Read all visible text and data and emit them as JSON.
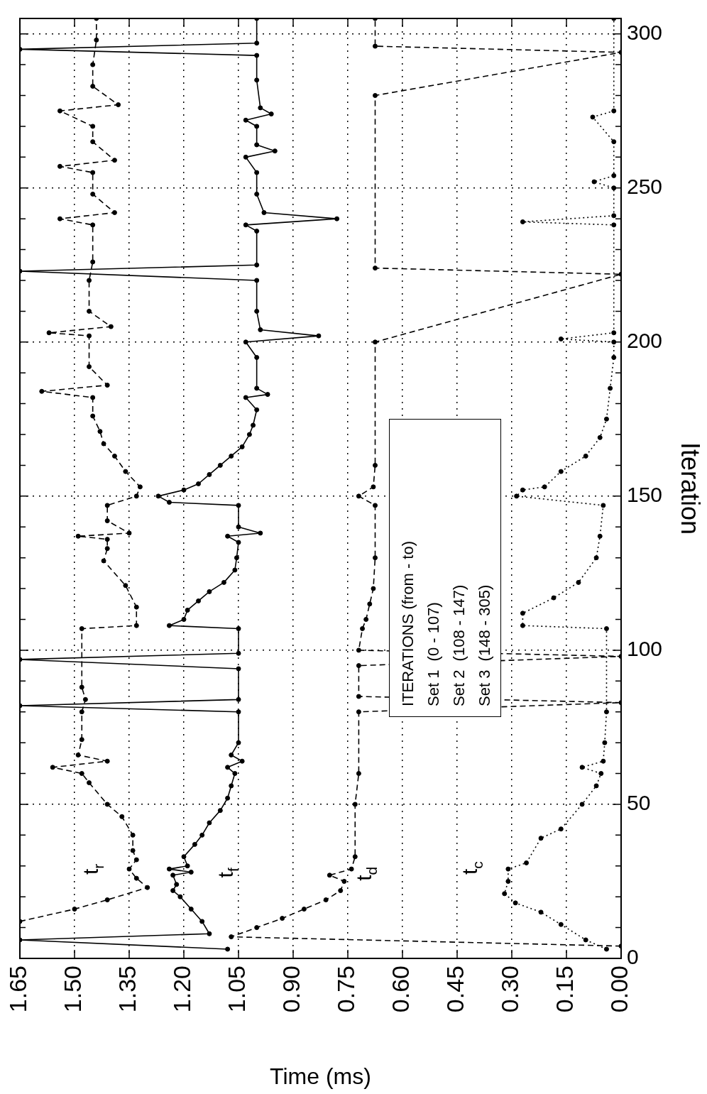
{
  "chart_data": {
    "type": "line",
    "xlabel": "Time (ms)",
    "ylabel": "Iteration",
    "ylim": [
      0,
      305
    ],
    "xlim": [
      1.65,
      0
    ],
    "yticks": [
      0,
      {
        "value": 10,
        "label": null
      },
      {
        "value": 20,
        "label": null
      },
      {
        "value": 30,
        "label": null
      },
      {
        "value": 40,
        "label": null
      },
      50,
      {
        "value": 60,
        "label": null
      },
      {
        "value": 70,
        "label": null
      },
      {
        "value": 80,
        "label": null
      },
      {
        "value": 90,
        "label": null
      },
      100,
      {
        "value": 110,
        "label": null
      },
      {
        "value": 120,
        "label": null
      },
      {
        "value": 130,
        "label": null
      },
      {
        "value": 140,
        "label": null
      },
      150,
      {
        "value": 160,
        "label": null
      },
      {
        "value": 170,
        "label": null
      },
      {
        "value": 180,
        "label": null
      },
      {
        "value": 190,
        "label": null
      },
      200,
      {
        "value": 210,
        "label": null
      },
      {
        "value": 220,
        "label": null
      },
      {
        "value": 230,
        "label": null
      },
      {
        "value": 240,
        "label": null
      },
      250,
      {
        "value": 260,
        "label": null
      },
      {
        "value": 270,
        "label": null
      },
      {
        "value": 280,
        "label": null
      },
      {
        "value": 290,
        "label": null
      },
      300
    ],
    "xticks": [
      {
        "value": 0,
        "label": "0.00"
      },
      {
        "value": 0.15,
        "label": "0.15"
      },
      {
        "value": 0.3,
        "label": "0.30"
      },
      {
        "value": 0.45,
        "label": "0.45"
      },
      {
        "value": 0.6,
        "label": "0.60"
      },
      {
        "value": 0.75,
        "label": "0.75"
      },
      {
        "value": 0.9,
        "label": "0.90"
      },
      {
        "value": 1.05,
        "label": "1.05"
      },
      {
        "value": 1.2,
        "label": "1.20"
      },
      {
        "value": 1.35,
        "label": "1.35"
      },
      {
        "value": 1.5,
        "label": "1.50"
      },
      {
        "value": 1.65,
        "label": "1.65"
      }
    ],
    "grid": true,
    "marker": "circle",
    "series": [
      {
        "name": "t$_{r}$",
        "color": "#000000",
        "line_style": "dashed",
        "values": [
          12,
          16,
          19,
          23,
          26,
          29,
          32,
          35,
          40,
          46,
          50,
          57,
          60,
          62,
          64,
          66,
          71,
          80,
          84,
          88,
          107,
          108,
          114,
          121,
          129,
          133,
          136,
          137,
          138,
          142,
          147,
          150,
          153,
          158,
          163,
          167,
          171,
          176,
          182,
          184,
          186,
          192,
          202,
          203,
          205,
          210,
          220,
          226,
          238,
          240,
          242,
          248,
          255,
          257,
          259,
          265,
          270,
          275,
          277,
          283,
          290,
          298,
          305
        ],
        "x": [
          1.65,
          1.5,
          1.41,
          1.3,
          1.33,
          1.35,
          1.33,
          1.34,
          1.34,
          1.37,
          1.41,
          1.46,
          1.48,
          1.56,
          1.41,
          1.49,
          1.48,
          1.48,
          1.47,
          1.48,
          1.48,
          1.33,
          1.33,
          1.36,
          1.42,
          1.41,
          1.41,
          1.49,
          1.35,
          1.41,
          1.41,
          1.33,
          1.32,
          1.36,
          1.39,
          1.42,
          1.43,
          1.45,
          1.45,
          1.59,
          1.41,
          1.46,
          1.46,
          1.57,
          1.4,
          1.46,
          1.46,
          1.45,
          1.45,
          1.54,
          1.39,
          1.45,
          1.45,
          1.54,
          1.39,
          1.45,
          1.45,
          1.54,
          1.38,
          1.45,
          1.45,
          1.44,
          1.44
        ]
      },
      {
        "name": "t$_{f}$",
        "color": "#000000",
        "line_style": "solid",
        "values": [
          3,
          6,
          8,
          12,
          16,
          20,
          22,
          24,
          27,
          28,
          29,
          30,
          33,
          37,
          40,
          44,
          48,
          52,
          56,
          60,
          62,
          64,
          66,
          70,
          80,
          82,
          84,
          94,
          97,
          99,
          107,
          108,
          110,
          113,
          116,
          119,
          122,
          126,
          130,
          135,
          137,
          138,
          140,
          147,
          148,
          150,
          152,
          154,
          157,
          160,
          163,
          166,
          170,
          173,
          178,
          182,
          183,
          185,
          195,
          200,
          202,
          204,
          210,
          220,
          223,
          225,
          236,
          238,
          240,
          242,
          248,
          255,
          260,
          262,
          264,
          270,
          272,
          274,
          276,
          285,
          293,
          295,
          297,
          305
        ],
        "x": [
          1.08,
          1.65,
          1.13,
          1.15,
          1.18,
          1.21,
          1.23,
          1.22,
          1.23,
          1.18,
          1.24,
          1.19,
          1.2,
          1.17,
          1.15,
          1.13,
          1.1,
          1.08,
          1.07,
          1.06,
          1.08,
          1.04,
          1.07,
          1.05,
          1.05,
          1.65,
          1.05,
          1.05,
          1.65,
          1.05,
          1.05,
          1.24,
          1.2,
          1.19,
          1.16,
          1.13,
          1.09,
          1.06,
          1.055,
          1.05,
          1.08,
          0.99,
          1.05,
          1.05,
          1.24,
          1.27,
          1.2,
          1.16,
          1.13,
          1.1,
          1.07,
          1.04,
          1.02,
          1.01,
          1.0,
          1.03,
          0.97,
          1.0,
          1.0,
          1.03,
          0.83,
          0.99,
          1.0,
          1.0,
          1.65,
          1.0,
          1.0,
          1.03,
          0.78,
          0.98,
          1.0,
          1.0,
          1.03,
          0.95,
          1.0,
          1.0,
          1.03,
          0.96,
          0.99,
          1.0,
          1.0,
          1.65,
          1.0,
          1.0
        ]
      },
      {
        "name": "t$_{d}$",
        "color": "#000000",
        "line_style": "dashed",
        "values": [
          4,
          7,
          10,
          13,
          16,
          19,
          22,
          25,
          27,
          29,
          33,
          50,
          60,
          80,
          83,
          85,
          95,
          98,
          100,
          107,
          110,
          115,
          120,
          130,
          147,
          150,
          153,
          160,
          200,
          222,
          224,
          280,
          294,
          296,
          305
        ],
        "x": [
          0,
          1.07,
          1.0,
          0.93,
          0.87,
          0.81,
          0.77,
          0.76,
          0.8,
          0.74,
          0.73,
          0.73,
          0.72,
          0.72,
          0,
          0.72,
          0.72,
          0,
          0.72,
          0.71,
          0.7,
          0.69,
          0.68,
          0.675,
          0.675,
          0.72,
          0.68,
          0.675,
          0.675,
          0,
          0.675,
          0.675,
          0,
          0.675,
          0.675
        ]
      },
      {
        "name": "t$_{c}$",
        "color": "#000000",
        "line_style": "dotted",
        "values": [
          3,
          6,
          11,
          15,
          18,
          21,
          25,
          29,
          31,
          39,
          42,
          50,
          56,
          60,
          62,
          64,
          70,
          80,
          107,
          108,
          112,
          117,
          122,
          130,
          137,
          147,
          150,
          152,
          153,
          158,
          163,
          169,
          175,
          185,
          195,
          200,
          201,
          203,
          238,
          239,
          241,
          250,
          252,
          254,
          265,
          273,
          275,
          305
        ],
        "x": [
          0.04,
          0.097,
          0.165,
          0.22,
          0.29,
          0.32,
          0.31,
          0.31,
          0.26,
          0.22,
          0.165,
          0.107,
          0.068,
          0.055,
          0.107,
          0.049,
          0.045,
          0.04,
          0.04,
          0.27,
          0.27,
          0.185,
          0.117,
          0.068,
          0.058,
          0.049,
          0.287,
          0.27,
          0.21,
          0.165,
          0.097,
          0.058,
          0.04,
          0.03,
          0.02,
          0.02,
          0.165,
          0.02,
          0.02,
          0.27,
          0.02,
          0.02,
          0.074,
          0.02,
          0.02,
          0.078,
          0.02,
          0.02
        ]
      }
    ],
    "annotations": [
      "ITERATIONS (from - to)",
      "Set 1  (0 - 107)",
      "Set 2  (108 - 147)",
      "Set 3  (148 - 305)"
    ]
  }
}
